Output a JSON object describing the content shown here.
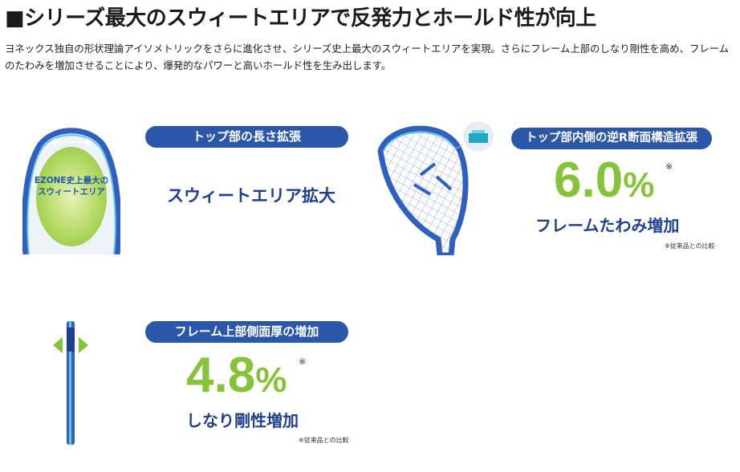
{
  "heading": "■シリーズ最大のスウィートエリアで反発力とホールド性が向上",
  "body_text": "ヨネックス独自の形状理論アイソメトリックをさらに進化させ、シリーズ史上最大のスウィートエリアを実現。さらにフレーム上部のしなり剛性を高め、フレームのたわみを増加させることにより、爆発的なパワーと高いホールド性を生み出します。",
  "feature1": {
    "racket_label_line1": "EZONE史上最大の",
    "racket_label_line2": "スウィートエリア",
    "pill": "トップ部の長さ拡張",
    "label": "スウィートエリア拡大"
  },
  "feature2": {
    "pill": "トップ部内側の逆R断面構造拡張",
    "value": "6.0",
    "unit": "%",
    "asterisk": "※",
    "label": "フレームたわみ増加",
    "note": "※従来品との比較"
  },
  "feature3": {
    "pill": "フレーム上部側面厚の増加",
    "value": "4.8",
    "unit": "%",
    "asterisk": "※",
    "label": "しなり剛性増加",
    "note": "※従来品との比較"
  },
  "colors": {
    "pill_blue": "#2a57a8",
    "label_navy": "#1f3f8f",
    "accent_green": "#86c23a",
    "frame_blue": "#2f5fbf"
  }
}
